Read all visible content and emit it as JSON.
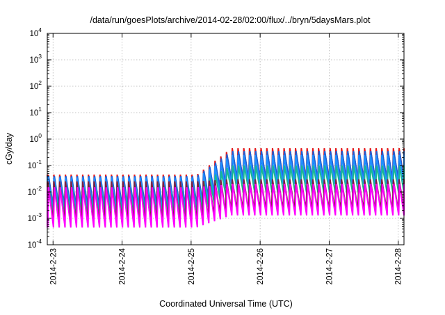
{
  "chart_data": {
    "type": "line",
    "title": "/data/run/goesPlots/archive/2014-02-28/02:00/flux/../bryn/5daysMars.plot",
    "xlabel": "Coordinated Universal Time (UTC)",
    "ylabel": "cGy/day",
    "yscale": "log",
    "ylim": [
      0.0001,
      10000
    ],
    "y_ticks": [
      {
        "value": 0.0001,
        "base": "10",
        "exp": "-4"
      },
      {
        "value": 0.001,
        "base": "10",
        "exp": "-3"
      },
      {
        "value": 0.01,
        "base": "10",
        "exp": "-2"
      },
      {
        "value": 0.1,
        "base": "10",
        "exp": "-1"
      },
      {
        "value": 1,
        "base": "10",
        "exp": "0"
      },
      {
        "value": 10,
        "base": "10",
        "exp": "1"
      },
      {
        "value": 100,
        "base": "10",
        "exp": "2"
      },
      {
        "value": 1000,
        "base": "10",
        "exp": "3"
      },
      {
        "value": 10000,
        "base": "10",
        "exp": "4"
      }
    ],
    "xlim": [
      "2014-02-22T22:00",
      "2014-02-28T02:00"
    ],
    "x_ticks": [
      "2014-2-23",
      "2014-2-24",
      "2014-2-25",
      "2014-2-26",
      "2014-2-27",
      "2014-2-28"
    ],
    "grid": true,
    "legend": "none",
    "series": [
      {
        "color": "#e41a1c",
        "low_before": 0.0028,
        "high_before": 0.045,
        "low_after": 0.03,
        "high_after": 0.45
      },
      {
        "color": "#1f5fd6",
        "low_before": 0.0024,
        "high_before": 0.04,
        "low_after": 0.025,
        "high_after": 0.35
      },
      {
        "color": "#1f8fff",
        "low_before": 0.002,
        "high_before": 0.035,
        "low_after": 0.02,
        "high_after": 0.25
      },
      {
        "color": "#18b894",
        "low_before": 0.0011,
        "high_before": 0.018,
        "low_after": 0.009,
        "high_after": 0.1
      },
      {
        "color": "#7f1f3f",
        "low_before": 0.0007,
        "high_before": 0.025,
        "low_after": 0.002,
        "high_after": 0.03
      },
      {
        "color": "#ff00ff",
        "low_before": 0.00045,
        "high_before": 0.015,
        "low_after": 0.0013,
        "high_after": 0.02
      }
    ],
    "pattern": {
      "pulse_period_hours": 2,
      "rise_hours": 0.3,
      "step_time": "2014-02-25T02:00",
      "step_ramp_hours": 12
    }
  }
}
